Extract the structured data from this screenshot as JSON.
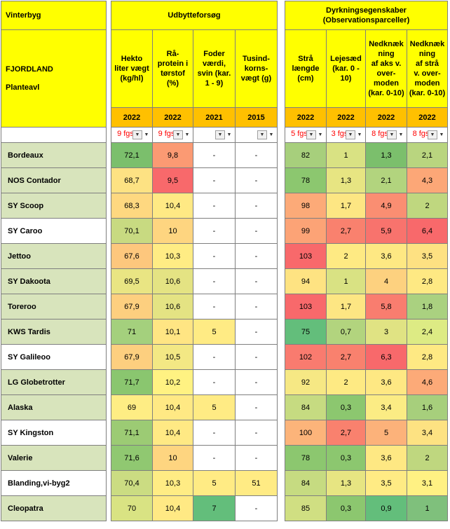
{
  "header": {
    "title": "Vinterbyg",
    "org_line1": "FJORDLAND",
    "org_line2": "Planteavl",
    "group_yield_label": "Udbytteforsøg",
    "group_cult_label_line1": "Dyrkningsegenskaber",
    "group_cult_label_line2": "(Observationsparceller)"
  },
  "columns": [
    {
      "lines": [
        "Hekto",
        "liter vægt",
        "(kg/hl)"
      ],
      "year": "2022",
      "count": "9 fgs"
    },
    {
      "lines": [
        "Rå-",
        "protein i",
        "tørstof",
        "(%)"
      ],
      "year": "2022",
      "count": "9 fgs"
    },
    {
      "lines": [
        "Foder",
        "værdi,",
        "svin (kar.",
        "1 - 9)"
      ],
      "year": "2021",
      "count": ""
    },
    {
      "lines": [
        "Tusind-",
        "korns-",
        "vægt (g)"
      ],
      "year": "2015",
      "count": ""
    },
    {
      "lines": [
        "Strå",
        "længde",
        "(cm)"
      ],
      "year": "2022",
      "count": "5 fgs"
    },
    {
      "lines": [
        "Lejesæd",
        "(kar. 0 -",
        "10)"
      ],
      "year": "2022",
      "count": "3 fgs"
    },
    {
      "lines": [
        "Nedknæk",
        "ning",
        "af aks v.",
        "over-",
        "moden",
        "(kar. 0-10)"
      ],
      "year": "2022",
      "count": "8 fgs"
    },
    {
      "lines": [
        "Nedknæk",
        "ning",
        "af strå",
        "v. over-",
        "moden",
        "(kar. 0-10)"
      ],
      "year": "2022",
      "count": "8 fgs"
    }
  ],
  "filter_arrow": "▼",
  "rows": [
    {
      "name": "Bordeaux",
      "values": [
        "72,1",
        "9,8",
        "-",
        "-",
        "82",
        "1",
        "1,3",
        "2,1"
      ]
    },
    {
      "name": "NOS Contador",
      "values": [
        "68,7",
        "9,5",
        "-",
        "-",
        "78",
        "1,3",
        "2,1",
        "4,3"
      ]
    },
    {
      "name": "SY Scoop",
      "values": [
        "68,3",
        "10,4",
        "-",
        "-",
        "98",
        "1,7",
        "4,9",
        "2"
      ]
    },
    {
      "name": "SY Caroo",
      "values": [
        "70,1",
        "10",
        "-",
        "-",
        "99",
        "2,7",
        "5,9",
        "6,4"
      ]
    },
    {
      "name": "Jettoo",
      "values": [
        "67,6",
        "10,3",
        "-",
        "-",
        "103",
        "2",
        "3,6",
        "3,5"
      ]
    },
    {
      "name": "SY Dakoota",
      "values": [
        "69,5",
        "10,6",
        "-",
        "-",
        "94",
        "1",
        "4",
        "2,8"
      ]
    },
    {
      "name": "Toreroo",
      "values": [
        "67,9",
        "10,6",
        "-",
        "-",
        "103",
        "1,7",
        "5,8",
        "1,8"
      ]
    },
    {
      "name": "KWS Tardis",
      "values": [
        "71",
        "10,1",
        "5",
        "-",
        "75",
        "0,7",
        "3",
        "2,4"
      ]
    },
    {
      "name": "SY Galileoo",
      "values": [
        "67,9",
        "10,5",
        "-",
        "-",
        "102",
        "2,7",
        "6,3",
        "2,8"
      ]
    },
    {
      "name": "LG Globetrotter",
      "values": [
        "71,7",
        "10,2",
        "-",
        "-",
        "92",
        "2",
        "3,6",
        "4,6"
      ]
    },
    {
      "name": "Alaska",
      "values": [
        "69",
        "10,4",
        "5",
        "-",
        "84",
        "0,3",
        "3,4",
        "1,6"
      ]
    },
    {
      "name": "SY Kingston",
      "values": [
        "71,1",
        "10,4",
        "-",
        "-",
        "100",
        "2,7",
        "5",
        "3,4"
      ]
    },
    {
      "name": "Valerie",
      "values": [
        "71,6",
        "10",
        "-",
        "-",
        "78",
        "0,3",
        "3,6",
        "2"
      ]
    },
    {
      "name": "Blanding,vi-byg2",
      "values": [
        "70,4",
        "10,3",
        "5",
        "51",
        "84",
        "1,3",
        "3,5",
        "3,1"
      ]
    },
    {
      "name": "Cleopatra",
      "values": [
        "70",
        "10,4",
        "7",
        "-",
        "85",
        "0,3",
        "0,9",
        "1"
      ]
    }
  ],
  "name_shading": [
    "g",
    "g",
    "g",
    "w",
    "g",
    "g",
    "g",
    "g",
    "w",
    "g",
    "g",
    "w",
    "g",
    "w",
    "g"
  ],
  "cell_colors": [
    [
      "#7bbf6c",
      "#fb9a73",
      "#ffffff",
      "#ffffff",
      "#a7cf7c",
      "#d9e283",
      "#7bbf6c",
      "#b9d57f"
    ],
    [
      "#fde283",
      "#f8696b",
      "#ffffff",
      "#ffffff",
      "#8cc76f",
      "#e7e582",
      "#b2d47e",
      "#fca777"
    ],
    [
      "#fed880",
      "#ffe984",
      "#ffffff",
      "#ffffff",
      "#fcaa78",
      "#fde683",
      "#fa8e72",
      "#bfd77f"
    ],
    [
      "#c8da81",
      "#fed580",
      "#ffffff",
      "#ffffff",
      "#fca376",
      "#f9816e",
      "#f8736d",
      "#f8696b"
    ],
    [
      "#fdc77d",
      "#ffec84",
      "#ffffff",
      "#ffffff",
      "#f8696b",
      "#feea83",
      "#fee883",
      "#fee182"
    ],
    [
      "#e9e583",
      "#e4e383",
      "#ffffff",
      "#ffffff",
      "#fee382",
      "#d9e283",
      "#fdd17f",
      "#fee983"
    ],
    [
      "#fdcf7f",
      "#e4e383",
      "#ffffff",
      "#ffffff",
      "#f8696b",
      "#fde683",
      "#f97d6f",
      "#aad180"
    ],
    [
      "#a4d07d",
      "#ffe583",
      "#ffeb84",
      "#ffffff",
      "#63be7b",
      "#b2d47e",
      "#e0e383",
      "#ddeb84"
    ],
    [
      "#fdcf7f",
      "#f3e884",
      "#ffffff",
      "#ffffff",
      "#f97b6f",
      "#f9816e",
      "#f8696b",
      "#fee983"
    ],
    [
      "#8ac66f",
      "#fff282",
      "#ffffff",
      "#ffffff",
      "#f6e884",
      "#feea83",
      "#fee883",
      "#fcaa78"
    ],
    [
      "#feed84",
      "#ffe984",
      "#ffeb84",
      "#ffffff",
      "#c6db81",
      "#8cc76f",
      "#fbec84",
      "#a7cf7c"
    ],
    [
      "#9ccb74",
      "#ffe984",
      "#ffffff",
      "#ffffff",
      "#fcb47a",
      "#f9816e",
      "#fcb27a",
      "#fde282"
    ],
    [
      "#90c871",
      "#fed580",
      "#ffffff",
      "#ffffff",
      "#8cc76f",
      "#8cc76f",
      "#fee883",
      "#bfd77f"
    ],
    [
      "#cbdc82",
      "#ffec84",
      "#ffeb84",
      "#ffeb84",
      "#c6db81",
      "#e7e582",
      "#ffeb84",
      "#fff183"
    ],
    [
      "#d9e383",
      "#ffe984",
      "#63be7b",
      "#ffffff",
      "#d0df82",
      "#8cc76f",
      "#63be7b",
      "#7fc07c"
    ]
  ]
}
